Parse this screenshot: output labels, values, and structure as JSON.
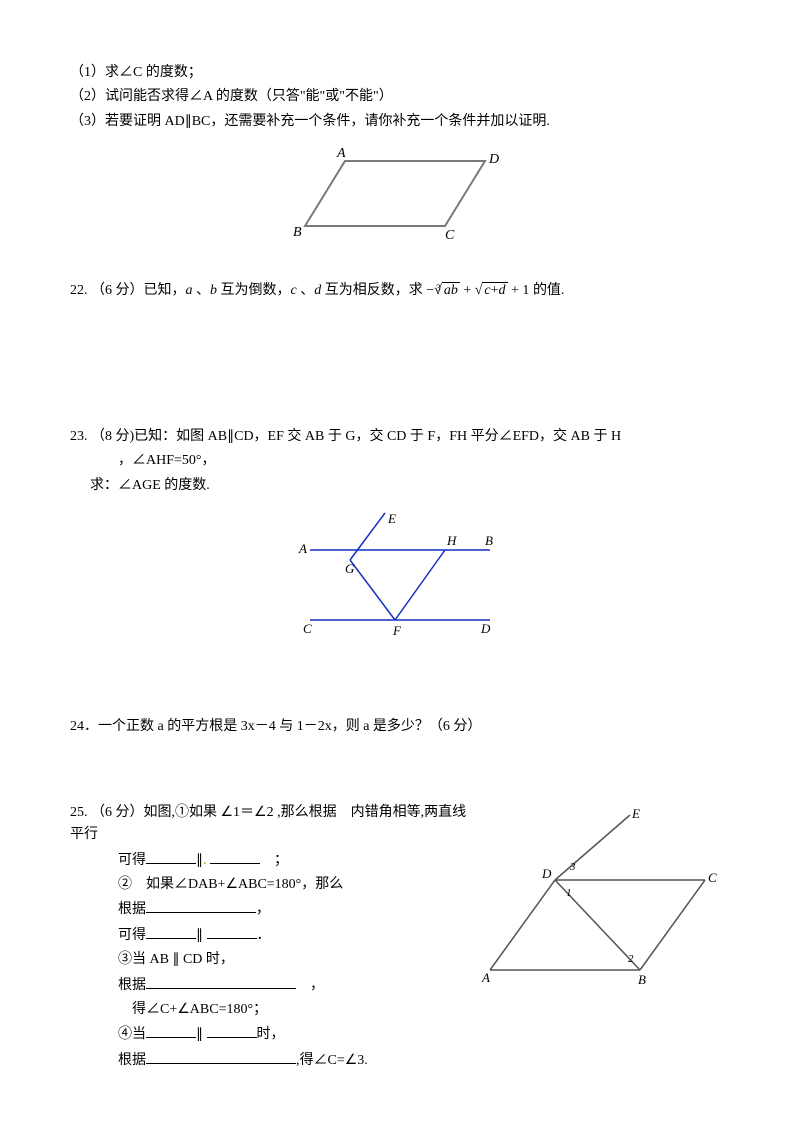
{
  "q21": {
    "p1": "（1）求∠C 的度数；",
    "p2": "（2）试问能否求得∠A 的度数（只答\"能\"或\"不能\"）",
    "p3": "（3）若要证明 AD∥BC，还需要补充一个条件，请你补充一个条件并加以证明.",
    "fig": {
      "A": "A",
      "B": "B",
      "C": "C",
      "D": "D"
    }
  },
  "q22": {
    "num": "22.",
    "prefix": "（6 分）已知，",
    "a": "a",
    "b": "b",
    "mid1": " 互为倒数，",
    "c": "c",
    "d": "d",
    "mid2": " 互为相反数，求",
    "expr_img_alt": "−∛(ab) + √(c+d) + 1",
    "suffix": "的值."
  },
  "q23": {
    "num": "23.",
    "l1": "（8 分)已知：如图 AB∥CD，EF 交 AB 于 G，交 CD 于 F，FH 平分∠EFD，交 AB 于 H",
    "l2": "，∠AHF=50°，",
    "l3": "求：∠AGE 的度数.",
    "fig": {
      "A": "A",
      "B": "B",
      "C": "C",
      "D": "D",
      "E": "E",
      "F": "F",
      "G": "G",
      "H": "H"
    }
  },
  "q24": {
    "num": "24．",
    "text": "一个正数 a 的平方根是 3x－4 与 1－2x，则 a 是多少？（6 分）"
  },
  "q25": {
    "num": "25.",
    "l1a": "（6 分）如图,①如果",
    "l1ang": "∠1＝∠2",
    "l1b": ",那么根据　内错角相等,两直线平行",
    "l2a": "可得",
    "l2b": "∥",
    "l2c": "　；",
    "l3a": "②　如果∠DAB+∠ABC=180°，那么",
    "l4a": "根据",
    "l4b": "，",
    "l5a": "可得",
    "l5b": "∥",
    "l5c": "．",
    "l6a": "③当 AB ∥ CD 时，",
    "l7a": "根据",
    "l7b": "　，",
    "l8a": "得∠C+∠ABC=180°；",
    "l9a": "④当",
    "l9b": "∥",
    "l9c": "时，",
    "l10a": "根据",
    "l10b": ",得∠C=∠3.",
    "fig": {
      "A": "A",
      "B": "B",
      "C": "C",
      "D": "D",
      "E": "E",
      "n1": "1",
      "n2": "2",
      "n3": "3"
    }
  },
  "colors": {
    "stroke_gray": "#7a7a7a",
    "stroke_blue": "#1030c0",
    "stroke_dk": "#555"
  }
}
